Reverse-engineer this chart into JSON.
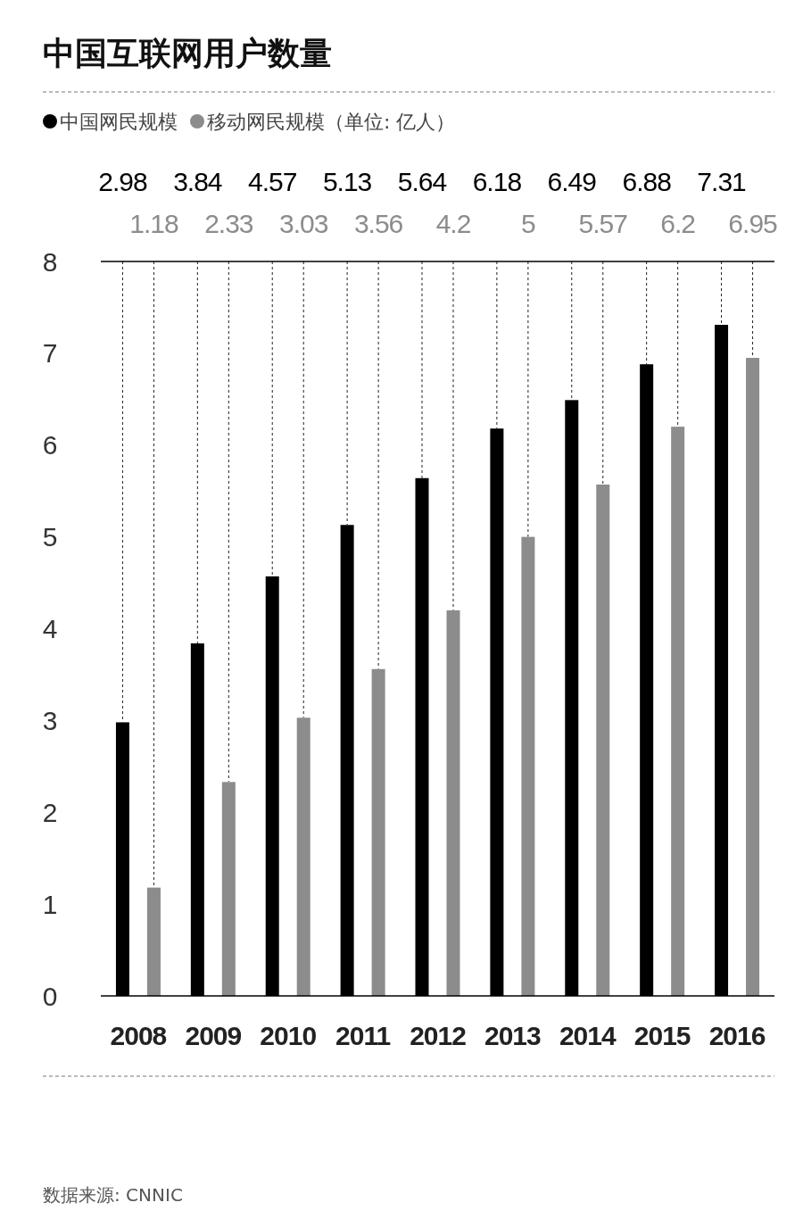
{
  "chart_data": {
    "type": "bar",
    "title": "中国互联网用户数量",
    "categories": [
      "2008",
      "2009",
      "2010",
      "2011",
      "2012",
      "2013",
      "2014",
      "2015",
      "2016"
    ],
    "series": [
      {
        "name": "中国网民规模",
        "color": "#000000",
        "values": [
          2.98,
          3.84,
          4.57,
          5.13,
          5.64,
          6.18,
          6.49,
          6.88,
          7.31
        ],
        "value_labels": [
          "2.98",
          "3.84",
          "4.57",
          "5.13",
          "5.64",
          "6.18",
          "6.49",
          "6.88",
          "7.31"
        ]
      },
      {
        "name": "移动网民规模",
        "color": "#8c8c8c",
        "values": [
          1.18,
          2.33,
          3.03,
          3.56,
          4.2,
          5,
          5.57,
          6.2,
          6.95
        ],
        "value_labels": [
          "1.18",
          "2.33",
          "3.03",
          "3.56",
          "4.2",
          "5",
          "5.57",
          "6.2",
          "6.95"
        ]
      }
    ],
    "ylim": [
      0,
      8
    ],
    "yticks": [
      0,
      1,
      2,
      3,
      4,
      5,
      6,
      7,
      8
    ],
    "grid": false,
    "legend": "top left",
    "annotations": [
      "（单位: 亿人）",
      "数据来源: CNNIC"
    ]
  }
}
